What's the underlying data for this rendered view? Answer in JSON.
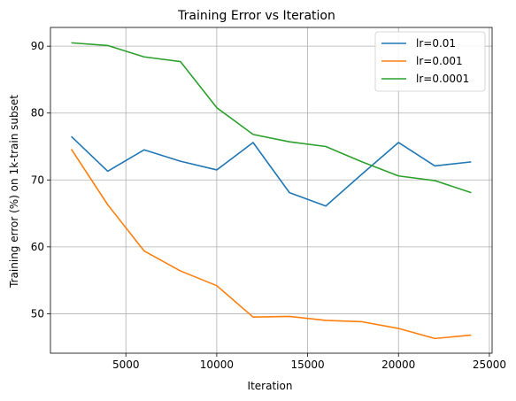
{
  "chart_data": {
    "type": "line",
    "title": "Training Error vs Iteration",
    "xlabel": "Iteration",
    "ylabel": "Training error (%) on 1k-train subset",
    "xlim": [
      850,
      25150
    ],
    "ylim": [
      44.1,
      92.8
    ],
    "xticks": [
      5000,
      10000,
      15000,
      20000,
      25000
    ],
    "yticks": [
      50,
      60,
      70,
      80,
      90
    ],
    "grid": true,
    "legend_position": "top-right",
    "series": [
      {
        "name": "lr=0.01",
        "color": "#1f77b4",
        "x": [
          2000,
          4000,
          6000,
          8000,
          10000,
          12000,
          14000,
          16000,
          18000,
          20000,
          22000,
          24000
        ],
        "values": [
          76.5,
          71.3,
          74.5,
          72.8,
          71.5,
          75.6,
          68.1,
          66.1,
          70.9,
          75.6,
          72.1,
          72.7
        ]
      },
      {
        "name": "lr=0.001",
        "color": "#ff7f0e",
        "x": [
          2000,
          4000,
          6000,
          8000,
          10000,
          12000,
          14000,
          16000,
          18000,
          20000,
          22000,
          24000
        ],
        "values": [
          74.6,
          66.3,
          59.4,
          56.4,
          54.2,
          49.5,
          49.6,
          49.0,
          48.8,
          47.8,
          46.3,
          46.8
        ]
      },
      {
        "name": "lr=0.0001",
        "color": "#2ca02c",
        "x": [
          2000,
          4000,
          6000,
          8000,
          10000,
          12000,
          14000,
          16000,
          18000,
          20000,
          22000,
          24000
        ],
        "values": [
          90.5,
          90.1,
          88.4,
          87.7,
          80.8,
          76.8,
          75.7,
          75.0,
          72.7,
          70.6,
          69.9,
          68.1
        ]
      }
    ]
  }
}
